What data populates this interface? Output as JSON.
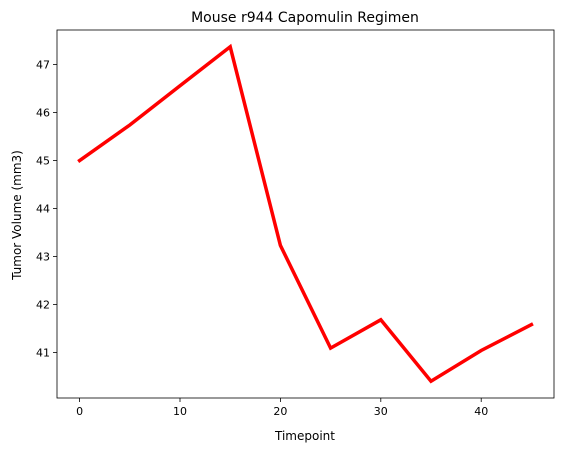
{
  "chart_data": {
    "type": "line",
    "title": "Mouse r944 Capomulin Regimen",
    "xlabel": "Timepoint",
    "ylabel": "Tumor Volume (mm3)",
    "x": [
      0,
      5,
      10,
      15,
      20,
      25,
      30,
      35,
      40,
      45
    ],
    "series": [
      {
        "values": [
          45.0,
          45.74,
          46.56,
          47.37,
          43.23,
          41.09,
          41.68,
          40.4,
          41.04,
          41.58
        ],
        "color": "#ff0000"
      }
    ],
    "xlim": [
      -2.25,
      47.25
    ],
    "ylim": [
      40.05,
      47.72
    ],
    "xticks": [
      0,
      10,
      20,
      30,
      40
    ],
    "yticks": [
      41,
      42,
      43,
      44,
      45,
      46,
      47
    ],
    "grid": false
  }
}
